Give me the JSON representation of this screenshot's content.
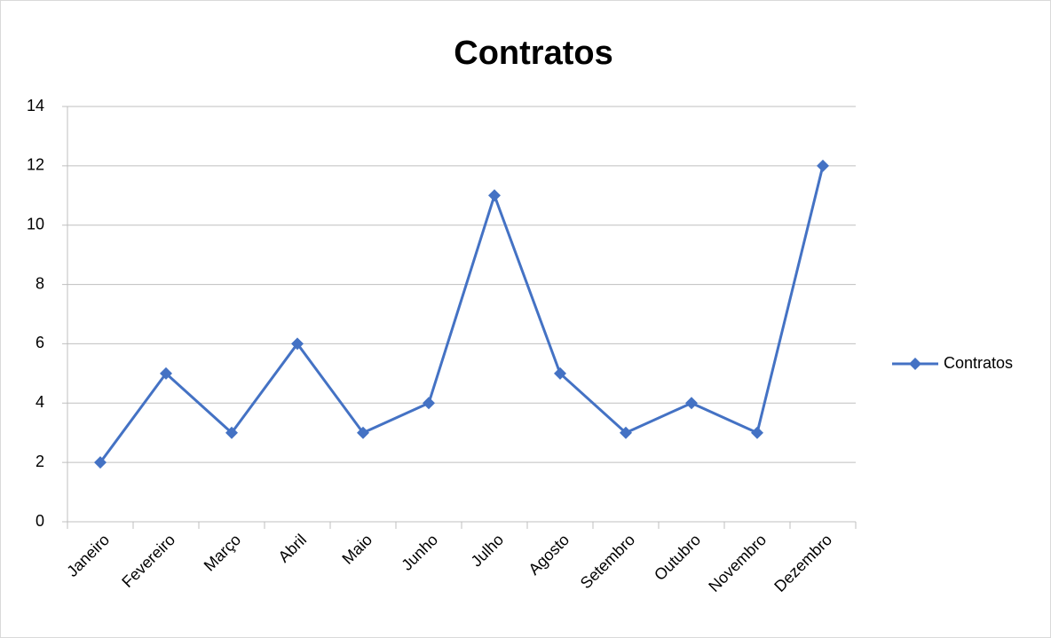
{
  "chart_data": {
    "type": "line",
    "title": "Contratos",
    "categories": [
      "Janeiro",
      "Fevereiro",
      "Março",
      "Abril",
      "Maio",
      "Junho",
      "Julho",
      "Agosto",
      "Setembro",
      "Outubro",
      "Novembro",
      "Dezembro"
    ],
    "series": [
      {
        "name": "Contratos",
        "color": "#4472c4",
        "values": [
          2,
          5,
          3,
          6,
          3,
          4,
          11,
          5,
          3,
          4,
          3,
          12
        ]
      }
    ],
    "ylim": [
      0,
      14
    ],
    "yticks": [
      0,
      2,
      4,
      6,
      8,
      10,
      12,
      14
    ],
    "grid": true,
    "legend": "right"
  }
}
